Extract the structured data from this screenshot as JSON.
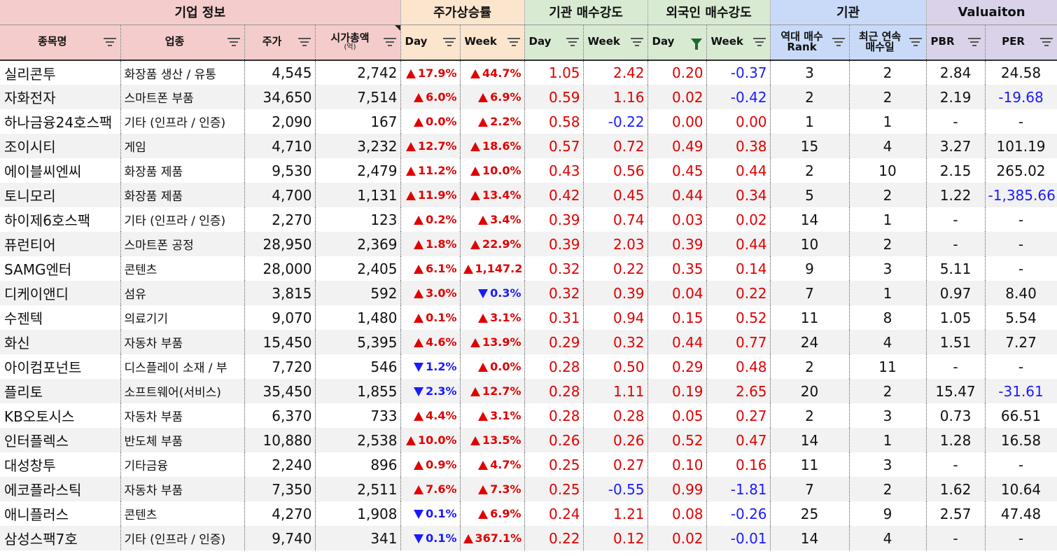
{
  "groups": [
    {
      "label": "기업 정보",
      "span": 4,
      "color": "#f4cccc"
    },
    {
      "label": "주가상승률",
      "span": 2,
      "color": "#fce5cd"
    },
    {
      "label": "기관 매수강도",
      "span": 2,
      "color": "#d9ead3"
    },
    {
      "label": "외국인 매수강도",
      "span": 2,
      "color": "#d9ead3"
    },
    {
      "label": "기관",
      "span": 2,
      "color": "#c9daf8"
    },
    {
      "label": "Valuaiton",
      "span": 2,
      "color": "#d9d2e9"
    }
  ],
  "columns": [
    {
      "key": "name",
      "label": "종목명",
      "group": 0
    },
    {
      "key": "industry",
      "label": "업종",
      "group": 0
    },
    {
      "key": "price",
      "label": "주가",
      "group": 0
    },
    {
      "key": "mcap",
      "label": "시가총액",
      "sub": "(억)",
      "group": 0,
      "note": true
    },
    {
      "key": "pday",
      "label": "Day",
      "group": 1,
      "left": true
    },
    {
      "key": "pweek",
      "label": "Week",
      "group": 1,
      "left": true
    },
    {
      "key": "iday",
      "label": "Day",
      "group": 2,
      "left": true
    },
    {
      "key": "iweek",
      "label": "Week",
      "group": 2,
      "left": true
    },
    {
      "key": "fday",
      "label": "Day",
      "group": 3,
      "left": true,
      "filtered": true
    },
    {
      "key": "fweek",
      "label": "Week",
      "group": 3,
      "left": true
    },
    {
      "key": "rank",
      "label": "역대 매수",
      "label2": "Rank",
      "group": 4
    },
    {
      "key": "streak",
      "label": "최근 연속",
      "label2": "매수일",
      "group": 4
    },
    {
      "key": "pbr",
      "label": "PBR",
      "group": 5,
      "left": true
    },
    {
      "key": "per",
      "label": "PER",
      "group": 5
    }
  ],
  "rows": [
    {
      "name": "실리콘투",
      "industry": "화장품 생산 / 유통",
      "price": "4,545",
      "mcap": "2,742",
      "pday": {
        "v": "17.9%",
        "dir": "up"
      },
      "pweek": {
        "v": "44.7%",
        "dir": "up"
      },
      "iday": {
        "v": "1.05",
        "c": "red"
      },
      "iweek": {
        "v": "2.42",
        "c": "red"
      },
      "fday": {
        "v": "0.20",
        "c": "red"
      },
      "fweek": {
        "v": "-0.37",
        "c": "blue"
      },
      "rank": "3",
      "streak": "2",
      "pbr": "2.84",
      "per": {
        "v": "24.58",
        "c": ""
      }
    },
    {
      "name": "자화전자",
      "industry": "스마트폰 부품",
      "price": "34,650",
      "mcap": "7,514",
      "pday": {
        "v": "6.0%",
        "dir": "up"
      },
      "pweek": {
        "v": "6.9%",
        "dir": "up"
      },
      "iday": {
        "v": "0.59",
        "c": "red"
      },
      "iweek": {
        "v": "1.16",
        "c": "red"
      },
      "fday": {
        "v": "0.02",
        "c": "red"
      },
      "fweek": {
        "v": "-0.42",
        "c": "blue"
      },
      "rank": "2",
      "streak": "2",
      "pbr": "2.19",
      "per": {
        "v": "-19.68",
        "c": "blue"
      }
    },
    {
      "name": "하나금융24호스팩",
      "industry": "기타 (인프라 / 인증)",
      "price": "2,090",
      "mcap": "167",
      "pday": {
        "v": "0.0%",
        "dir": "up"
      },
      "pweek": {
        "v": "2.2%",
        "dir": "up"
      },
      "iday": {
        "v": "0.58",
        "c": "red"
      },
      "iweek": {
        "v": "-0.22",
        "c": "blue"
      },
      "fday": {
        "v": "0.00",
        "c": "red"
      },
      "fweek": {
        "v": "0.00",
        "c": "red"
      },
      "rank": "1",
      "streak": "1",
      "pbr": "-",
      "per": {
        "v": "-",
        "c": ""
      }
    },
    {
      "name": "조이시티",
      "industry": "게임",
      "price": "4,710",
      "mcap": "3,232",
      "pday": {
        "v": "12.7%",
        "dir": "up"
      },
      "pweek": {
        "v": "18.6%",
        "dir": "up"
      },
      "iday": {
        "v": "0.57",
        "c": "red"
      },
      "iweek": {
        "v": "0.72",
        "c": "red"
      },
      "fday": {
        "v": "0.49",
        "c": "red"
      },
      "fweek": {
        "v": "0.38",
        "c": "red"
      },
      "rank": "15",
      "streak": "4",
      "pbr": "3.27",
      "per": {
        "v": "101.19",
        "c": ""
      }
    },
    {
      "name": "에이블씨엔씨",
      "industry": "화장품 제품",
      "price": "9,530",
      "mcap": "2,479",
      "pday": {
        "v": "11.2%",
        "dir": "up"
      },
      "pweek": {
        "v": "10.0%",
        "dir": "up"
      },
      "iday": {
        "v": "0.43",
        "c": "red"
      },
      "iweek": {
        "v": "0.56",
        "c": "red"
      },
      "fday": {
        "v": "0.45",
        "c": "red"
      },
      "fweek": {
        "v": "0.44",
        "c": "red"
      },
      "rank": "2",
      "streak": "10",
      "pbr": "2.15",
      "per": {
        "v": "265.02",
        "c": ""
      }
    },
    {
      "name": "토니모리",
      "industry": "화장품 제품",
      "price": "4,700",
      "mcap": "1,131",
      "pday": {
        "v": "11.9%",
        "dir": "up"
      },
      "pweek": {
        "v": "13.4%",
        "dir": "up"
      },
      "iday": {
        "v": "0.42",
        "c": "red"
      },
      "iweek": {
        "v": "0.45",
        "c": "red"
      },
      "fday": {
        "v": "0.44",
        "c": "red"
      },
      "fweek": {
        "v": "0.34",
        "c": "red"
      },
      "rank": "5",
      "streak": "2",
      "pbr": "1.22",
      "per": {
        "v": "-1,385.66",
        "c": "blue"
      }
    },
    {
      "name": "하이제6호스팩",
      "industry": "기타 (인프라 / 인증)",
      "price": "2,270",
      "mcap": "123",
      "pday": {
        "v": "0.2%",
        "dir": "up"
      },
      "pweek": {
        "v": "3.4%",
        "dir": "up"
      },
      "iday": {
        "v": "0.39",
        "c": "red"
      },
      "iweek": {
        "v": "0.74",
        "c": "red"
      },
      "fday": {
        "v": "0.03",
        "c": "red"
      },
      "fweek": {
        "v": "0.02",
        "c": "red"
      },
      "rank": "14",
      "streak": "1",
      "pbr": "-",
      "per": {
        "v": "-",
        "c": ""
      }
    },
    {
      "name": "퓨런티어",
      "industry": "스마트폰 공정",
      "price": "28,950",
      "mcap": "2,369",
      "pday": {
        "v": "1.8%",
        "dir": "up"
      },
      "pweek": {
        "v": "22.9%",
        "dir": "up"
      },
      "iday": {
        "v": "0.39",
        "c": "red"
      },
      "iweek": {
        "v": "2.03",
        "c": "red"
      },
      "fday": {
        "v": "0.39",
        "c": "red"
      },
      "fweek": {
        "v": "0.44",
        "c": "red"
      },
      "rank": "10",
      "streak": "2",
      "pbr": "-",
      "per": {
        "v": "-",
        "c": ""
      }
    },
    {
      "name": "SAMG엔터",
      "industry": "콘텐츠",
      "price": "28,000",
      "mcap": "2,405",
      "pday": {
        "v": "6.1%",
        "dir": "up"
      },
      "pweek": {
        "v": "1,147.2",
        "dir": "up"
      },
      "iday": {
        "v": "0.32",
        "c": "red"
      },
      "iweek": {
        "v": "0.22",
        "c": "red"
      },
      "fday": {
        "v": "0.35",
        "c": "red"
      },
      "fweek": {
        "v": "0.14",
        "c": "red"
      },
      "rank": "9",
      "streak": "3",
      "pbr": "5.11",
      "per": {
        "v": "-",
        "c": ""
      }
    },
    {
      "name": "디케이앤디",
      "industry": "섬유",
      "price": "3,815",
      "mcap": "592",
      "pday": {
        "v": "3.0%",
        "dir": "up"
      },
      "pweek": {
        "v": "0.3%",
        "dir": "dn"
      },
      "iday": {
        "v": "0.32",
        "c": "red"
      },
      "iweek": {
        "v": "0.39",
        "c": "red"
      },
      "fday": {
        "v": "0.04",
        "c": "red"
      },
      "fweek": {
        "v": "0.22",
        "c": "red"
      },
      "rank": "7",
      "streak": "1",
      "pbr": "0.97",
      "per": {
        "v": "8.40",
        "c": ""
      }
    },
    {
      "name": "수젠텍",
      "industry": "의료기기",
      "price": "9,070",
      "mcap": "1,480",
      "pday": {
        "v": "0.1%",
        "dir": "up"
      },
      "pweek": {
        "v": "3.1%",
        "dir": "up"
      },
      "iday": {
        "v": "0.31",
        "c": "red"
      },
      "iweek": {
        "v": "0.94",
        "c": "red"
      },
      "fday": {
        "v": "0.15",
        "c": "red"
      },
      "fweek": {
        "v": "0.52",
        "c": "red"
      },
      "rank": "11",
      "streak": "8",
      "pbr": "1.05",
      "per": {
        "v": "5.54",
        "c": ""
      }
    },
    {
      "name": "화신",
      "industry": "자동차 부품",
      "price": "15,450",
      "mcap": "5,395",
      "pday": {
        "v": "4.6%",
        "dir": "up"
      },
      "pweek": {
        "v": "13.9%",
        "dir": "up"
      },
      "iday": {
        "v": "0.29",
        "c": "red"
      },
      "iweek": {
        "v": "0.32",
        "c": "red"
      },
      "fday": {
        "v": "0.44",
        "c": "red"
      },
      "fweek": {
        "v": "0.77",
        "c": "red"
      },
      "rank": "24",
      "streak": "4",
      "pbr": "1.51",
      "per": {
        "v": "7.27",
        "c": ""
      }
    },
    {
      "name": "아이컴포넌트",
      "industry": "디스플레이 소재 / 부",
      "price": "7,720",
      "mcap": "546",
      "pday": {
        "v": "1.2%",
        "dir": "dn"
      },
      "pweek": {
        "v": "0.0%",
        "dir": "up"
      },
      "iday": {
        "v": "0.28",
        "c": "red"
      },
      "iweek": {
        "v": "0.50",
        "c": "red"
      },
      "fday": {
        "v": "0.29",
        "c": "red"
      },
      "fweek": {
        "v": "0.48",
        "c": "red"
      },
      "rank": "2",
      "streak": "11",
      "pbr": "-",
      "per": {
        "v": "-",
        "c": ""
      }
    },
    {
      "name": "플리토",
      "industry": "소프트웨어(서비스)",
      "price": "35,450",
      "mcap": "1,855",
      "pday": {
        "v": "2.3%",
        "dir": "dn"
      },
      "pweek": {
        "v": "12.7%",
        "dir": "up"
      },
      "iday": {
        "v": "0.28",
        "c": "red"
      },
      "iweek": {
        "v": "1.11",
        "c": "red"
      },
      "fday": {
        "v": "0.19",
        "c": "red"
      },
      "fweek": {
        "v": "2.65",
        "c": "red"
      },
      "rank": "20",
      "streak": "2",
      "pbr": "15.47",
      "per": {
        "v": "-31.61",
        "c": "blue"
      }
    },
    {
      "name": "KB오토시스",
      "industry": "자동차 부품",
      "price": "6,370",
      "mcap": "733",
      "pday": {
        "v": "4.4%",
        "dir": "up"
      },
      "pweek": {
        "v": "3.1%",
        "dir": "up"
      },
      "iday": {
        "v": "0.28",
        "c": "red"
      },
      "iweek": {
        "v": "0.28",
        "c": "red"
      },
      "fday": {
        "v": "0.05",
        "c": "red"
      },
      "fweek": {
        "v": "0.27",
        "c": "red"
      },
      "rank": "2",
      "streak": "3",
      "pbr": "0.73",
      "per": {
        "v": "66.51",
        "c": ""
      }
    },
    {
      "name": "인터플렉스",
      "industry": "반도체 부품",
      "price": "10,880",
      "mcap": "2,538",
      "pday": {
        "v": "10.0%",
        "dir": "up"
      },
      "pweek": {
        "v": "13.5%",
        "dir": "up"
      },
      "iday": {
        "v": "0.26",
        "c": "red"
      },
      "iweek": {
        "v": "0.26",
        "c": "red"
      },
      "fday": {
        "v": "0.52",
        "c": "red"
      },
      "fweek": {
        "v": "0.47",
        "c": "red"
      },
      "rank": "14",
      "streak": "1",
      "pbr": "1.28",
      "per": {
        "v": "16.58",
        "c": ""
      }
    },
    {
      "name": "대성창투",
      "industry": "기타금융",
      "price": "2,240",
      "mcap": "896",
      "pday": {
        "v": "0.9%",
        "dir": "up"
      },
      "pweek": {
        "v": "4.7%",
        "dir": "up"
      },
      "iday": {
        "v": "0.25",
        "c": "red"
      },
      "iweek": {
        "v": "0.27",
        "c": "red"
      },
      "fday": {
        "v": "0.10",
        "c": "red"
      },
      "fweek": {
        "v": "0.16",
        "c": "red"
      },
      "rank": "11",
      "streak": "3",
      "pbr": "-",
      "per": {
        "v": "-",
        "c": ""
      }
    },
    {
      "name": "에코플라스틱",
      "industry": "자동차 부품",
      "price": "7,350",
      "mcap": "2,511",
      "pday": {
        "v": "7.6%",
        "dir": "up"
      },
      "pweek": {
        "v": "7.3%",
        "dir": "up"
      },
      "iday": {
        "v": "0.25",
        "c": "red"
      },
      "iweek": {
        "v": "-0.55",
        "c": "blue"
      },
      "fday": {
        "v": "0.99",
        "c": "red"
      },
      "fweek": {
        "v": "-1.81",
        "c": "blue"
      },
      "rank": "7",
      "streak": "2",
      "pbr": "1.62",
      "per": {
        "v": "10.64",
        "c": ""
      }
    },
    {
      "name": "애니플러스",
      "industry": "콘텐츠",
      "price": "4,270",
      "mcap": "1,908",
      "pday": {
        "v": "0.1%",
        "dir": "dn"
      },
      "pweek": {
        "v": "6.9%",
        "dir": "up"
      },
      "iday": {
        "v": "0.24",
        "c": "red"
      },
      "iweek": {
        "v": "1.21",
        "c": "red"
      },
      "fday": {
        "v": "0.08",
        "c": "red"
      },
      "fweek": {
        "v": "-0.26",
        "c": "blue"
      },
      "rank": "25",
      "streak": "9",
      "pbr": "2.57",
      "per": {
        "v": "47.48",
        "c": ""
      }
    },
    {
      "name": "삼성스팩7호",
      "industry": "기타 (인프라 / 인증)",
      "price": "9,740",
      "mcap": "341",
      "pday": {
        "v": "0.1%",
        "dir": "dn"
      },
      "pweek": {
        "v": "367.1%",
        "dir": "up"
      },
      "iday": {
        "v": "0.22",
        "c": "red"
      },
      "iweek": {
        "v": "0.12",
        "c": "red"
      },
      "fday": {
        "v": "0.02",
        "c": "red"
      },
      "fweek": {
        "v": "-0.01",
        "c": "blue"
      },
      "rank": "14",
      "streak": "4",
      "pbr": "-",
      "per": {
        "v": "-",
        "c": ""
      }
    }
  ]
}
